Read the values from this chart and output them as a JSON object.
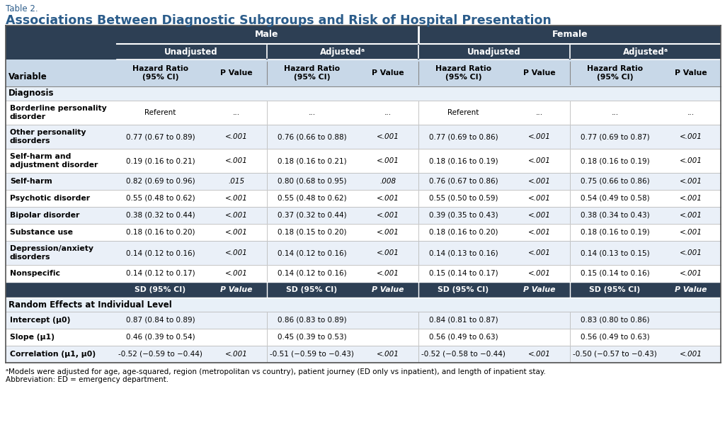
{
  "table_label": "Table 2.",
  "title": "Associations Between Diagnostic Subgroups and Risk of Hospital Presentation",
  "header_dark_bg": "#2D3F54",
  "header_mid_bg": "#3D5268",
  "subheader_bg": "#C8D8E8",
  "row_bg_white": "#FFFFFF",
  "row_bg_light": "#EAF0F8",
  "section_bg": "#E8F0F8",
  "sd_row_bg": "#2D3F54",
  "title_color": "#2B5C8A",
  "label_color": "#1A1A1A",
  "footnote": "ᵃModels were adjusted for age, age-squared, region (metropolitan vs country), patient journey (ED only vs inpatient), and length of inpatient stay.\nAbbreviation: ED = emergency department.",
  "rows": [
    {
      "type": "section",
      "label": "Diagnosis"
    },
    {
      "type": "data2",
      "label": "Borderline personality\ndisorder",
      "values": [
        "Referent",
        "...",
        "...",
        "...",
        "Referent",
        "...",
        "...",
        "..."
      ]
    },
    {
      "type": "data2",
      "label": "Other personality\ndisorders",
      "values": [
        "0.77 (0.67 to 0.89)",
        "<.001",
        "0.76 (0.66 to 0.88)",
        "<.001",
        "0.77 (0.69 to 0.86)",
        "<.001",
        "0.77 (0.69 to 0.87)",
        "<.001"
      ]
    },
    {
      "type": "data2",
      "label": "Self-harm and\nadjustment disorder",
      "values": [
        "0.19 (0.16 to 0.21)",
        "<.001",
        "0.18 (0.16 to 0.21)",
        "<.001",
        "0.18 (0.16 to 0.19)",
        "<.001",
        "0.18 (0.16 to 0.19)",
        "<.001"
      ]
    },
    {
      "type": "data1",
      "label": "Self-harm",
      "values": [
        "0.82 (0.69 to 0.96)",
        ".015",
        "0.80 (0.68 to 0.95)",
        ".008",
        "0.76 (0.67 to 0.86)",
        "<.001",
        "0.75 (0.66 to 0.86)",
        "<.001"
      ]
    },
    {
      "type": "data1",
      "label": "Psychotic disorder",
      "values": [
        "0.55 (0.48 to 0.62)",
        "<.001",
        "0.55 (0.48 to 0.62)",
        "<.001",
        "0.55 (0.50 to 0.59)",
        "<.001",
        "0.54 (0.49 to 0.58)",
        "<.001"
      ]
    },
    {
      "type": "data1",
      "label": "Bipolar disorder",
      "values": [
        "0.38 (0.32 to 0.44)",
        "<.001",
        "0.37 (0.32 to 0.44)",
        "<.001",
        "0.39 (0.35 to 0.43)",
        "<.001",
        "0.38 (0.34 to 0.43)",
        "<.001"
      ]
    },
    {
      "type": "data1",
      "label": "Substance use",
      "values": [
        "0.18 (0.16 to 0.20)",
        "<.001",
        "0.18 (0.15 to 0.20)",
        "<.001",
        "0.18 (0.16 to 0.20)",
        "<.001",
        "0.18 (0.16 to 0.19)",
        "<.001"
      ]
    },
    {
      "type": "data2",
      "label": "Depression/anxiety\ndisorders",
      "values": [
        "0.14 (0.12 to 0.16)",
        "<.001",
        "0.14 (0.12 to 0.16)",
        "<.001",
        "0.14 (0.13 to 0.16)",
        "<.001",
        "0.14 (0.13 to 0.15)",
        "<.001"
      ]
    },
    {
      "type": "data1",
      "label": "Nonspecific",
      "values": [
        "0.14 (0.12 to 0.17)",
        "<.001",
        "0.14 (0.12 to 0.16)",
        "<.001",
        "0.15 (0.14 to 0.17)",
        "<.001",
        "0.15 (0.14 to 0.16)",
        "<.001"
      ]
    },
    {
      "type": "sd_header",
      "values": [
        "SD (95% CI)",
        "P Value",
        "SD (95% CI)",
        "P Value",
        "SD (95% CI)",
        "P Value",
        "SD (95% CI)",
        "P Value"
      ]
    },
    {
      "type": "section",
      "label": "Random Effects at Individual Level"
    },
    {
      "type": "data1",
      "label": "Intercept (μ0)",
      "values": [
        "0.87 (0.84 to 0.89)",
        "",
        "0.86 (0.83 to 0.89)",
        "",
        "0.84 (0.81 to 0.87)",
        "",
        "0.83 (0.80 to 0.86)",
        ""
      ]
    },
    {
      "type": "data1",
      "label": "Slope (μ1)",
      "values": [
        "0.46 (0.39 to 0.54)",
        "",
        "0.45 (0.39 to 0.53)",
        "",
        "0.56 (0.49 to 0.63)",
        "",
        "0.56 (0.49 to 0.63)",
        ""
      ]
    },
    {
      "type": "data1",
      "label": "Correlation (μ1, μ0)",
      "values": [
        "-0.52 (−0.59 to −0.44)",
        "<.001",
        "-0.51 (−0.59 to −0.43)",
        "<.001",
        "-0.52 (−0.58 to −0.44)",
        "<.001",
        "-0.50 (−0.57 to −0.43)",
        "<.001"
      ]
    }
  ]
}
